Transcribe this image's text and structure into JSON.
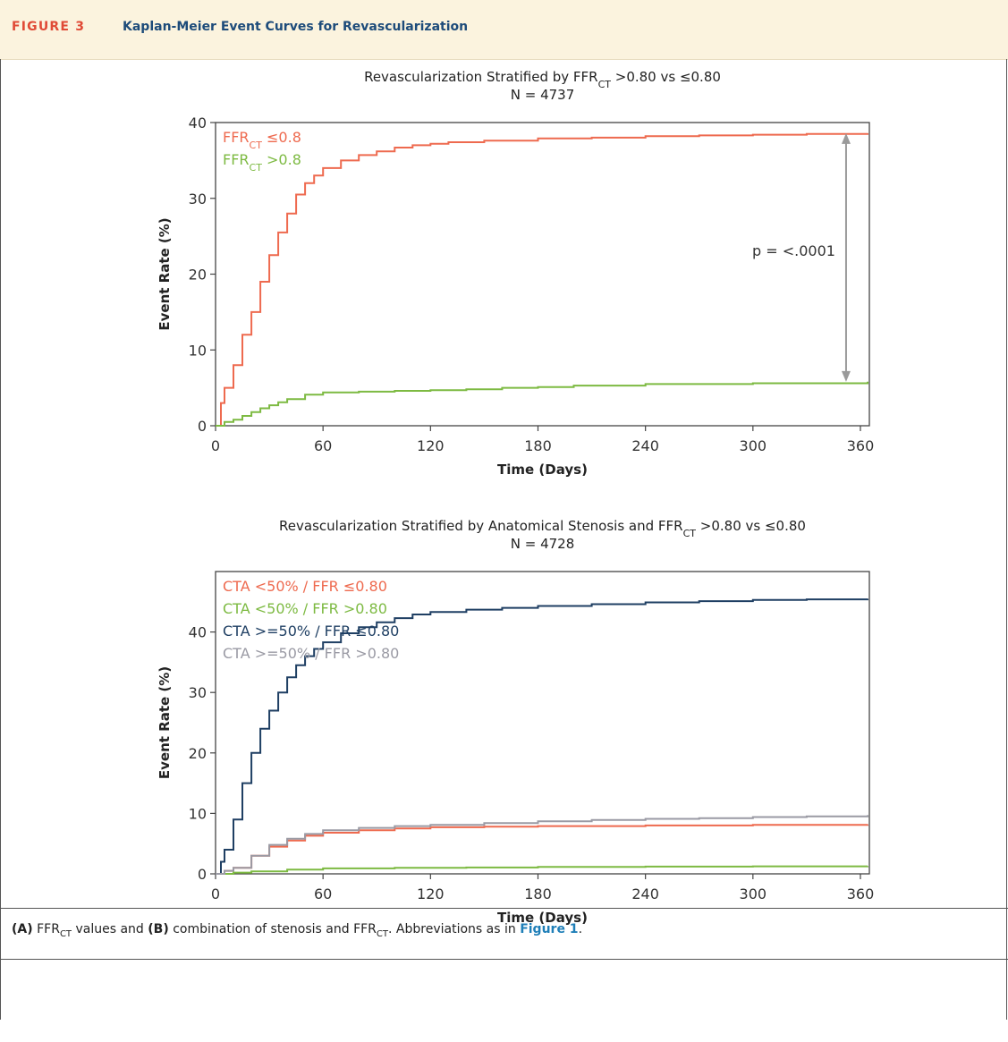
{
  "header": {
    "figure_label": "FIGURE 3",
    "figure_title": "Kaplan-Meier Event Curves for Revascularization"
  },
  "caption": {
    "a_label": "(A)",
    "a_text_pre": "FFR",
    "a_sub": "CT",
    "a_text_post": "values and",
    "b_label": "(B)",
    "b_text_pre": "combination of stenosis and FFR",
    "b_sub": "CT",
    "b_text_post": ". Abbreviations as in",
    "ref_link": "Figure 1",
    "end": "."
  },
  "colors": {
    "red": "#ee6a4f",
    "green": "#7dba42",
    "navy": "#1f3f63",
    "gray": "#9a9aa4",
    "arrow": "#9a9a9a",
    "frame": "#444444"
  },
  "chart_data": [
    {
      "type": "line",
      "title_line1_pre": "Revascularization Stratified by FFR",
      "title_line1_sub": "CT",
      "title_line1_post": " >0.80 vs ≤0.80",
      "title_line2": "N = 4737",
      "xlabel": "Time (Days)",
      "ylabel": "Event Rate (%)",
      "xlim": [
        0,
        365
      ],
      "ylim": [
        0,
        40
      ],
      "xticks": [
        0,
        60,
        120,
        180,
        240,
        300,
        360
      ],
      "yticks": [
        0,
        10,
        20,
        30,
        40
      ],
      "annotation": "p = <.0001",
      "annotation_arrow": {
        "x": 352,
        "y_from": 5.8,
        "y_to": 38.6
      },
      "legend_position": "top-left",
      "series": [
        {
          "name_pre": "FFR",
          "name_sub": "CT",
          "name_post": " ≤0.8",
          "color": "#ee6a4f",
          "x": [
            0,
            3,
            5,
            10,
            15,
            20,
            25,
            30,
            35,
            40,
            45,
            50,
            55,
            60,
            70,
            80,
            90,
            100,
            110,
            120,
            130,
            150,
            180,
            210,
            240,
            270,
            300,
            330,
            364
          ],
          "y": [
            0,
            3,
            5,
            8,
            12,
            15,
            19,
            22.5,
            25.5,
            28,
            30.5,
            32,
            33,
            34,
            35,
            35.7,
            36.2,
            36.7,
            37.0,
            37.2,
            37.4,
            37.6,
            37.9,
            38.0,
            38.2,
            38.3,
            38.4,
            38.5,
            38.6
          ]
        },
        {
          "name_pre": "FFR",
          "name_sub": "CT",
          "name_post": " >0.8",
          "color": "#7dba42",
          "x": [
            0,
            5,
            10,
            15,
            20,
            25,
            30,
            35,
            40,
            50,
            60,
            80,
            100,
            120,
            140,
            160,
            180,
            200,
            240,
            300,
            364
          ],
          "y": [
            0,
            0.5,
            0.8,
            1.3,
            1.8,
            2.3,
            2.7,
            3.1,
            3.5,
            4.1,
            4.4,
            4.5,
            4.6,
            4.7,
            4.8,
            5.0,
            5.1,
            5.3,
            5.5,
            5.6,
            5.8
          ]
        }
      ]
    },
    {
      "type": "line",
      "title_line1_pre": "Revascularization Stratified by Anatomical Stenosis and FFR",
      "title_line1_sub": "CT",
      "title_line1_post": " >0.80 vs ≤0.80",
      "title_line2": "N = 4728",
      "xlabel": "Time (Days)",
      "ylabel": "Event Rate (%)",
      "xlim": [
        0,
        365
      ],
      "ylim": [
        0,
        50
      ],
      "xticks": [
        0,
        60,
        120,
        180,
        240,
        300,
        360
      ],
      "yticks": [
        0,
        10,
        20,
        30,
        40
      ],
      "legend_position": "top-left",
      "series": [
        {
          "name": "CTA <50% / FFR ≤0.80",
          "color": "#ee6a4f",
          "x": [
            0,
            5,
            10,
            20,
            30,
            40,
            50,
            60,
            80,
            100,
            120,
            150,
            180,
            240,
            300,
            364
          ],
          "y": [
            0,
            0.5,
            1.0,
            3.0,
            4.5,
            5.5,
            6.3,
            6.8,
            7.2,
            7.5,
            7.7,
            7.8,
            7.9,
            8.0,
            8.1,
            8.2
          ]
        },
        {
          "name": "CTA <50% / FFR >0.80",
          "color": "#7dba42",
          "x": [
            0,
            10,
            20,
            40,
            60,
            100,
            140,
            180,
            240,
            300,
            364
          ],
          "y": [
            0,
            0.2,
            0.4,
            0.7,
            0.9,
            1.0,
            1.05,
            1.15,
            1.2,
            1.25,
            1.3
          ]
        },
        {
          "name": "CTA >=50% / FFR ≤0.80",
          "color": "#1f3f63",
          "x": [
            0,
            3,
            5,
            10,
            15,
            20,
            25,
            30,
            35,
            40,
            45,
            50,
            55,
            60,
            70,
            80,
            90,
            100,
            110,
            120,
            140,
            160,
            180,
            210,
            240,
            270,
            300,
            330,
            364
          ],
          "y": [
            0,
            2,
            4,
            9,
            15,
            20,
            24,
            27,
            30,
            32.5,
            34.5,
            36,
            37.2,
            38.3,
            39.8,
            40.8,
            41.6,
            42.3,
            42.9,
            43.3,
            43.7,
            44.0,
            44.3,
            44.6,
            44.9,
            45.1,
            45.3,
            45.4,
            45.5
          ]
        },
        {
          "name": "CTA >=50% / FFR >0.80",
          "color": "#9a9aa4",
          "x": [
            0,
            5,
            10,
            20,
            30,
            40,
            50,
            60,
            80,
            100,
            120,
            150,
            180,
            210,
            240,
            270,
            300,
            330,
            364
          ],
          "y": [
            0,
            0.5,
            1.0,
            3.0,
            4.8,
            5.8,
            6.6,
            7.2,
            7.6,
            7.9,
            8.1,
            8.4,
            8.7,
            8.9,
            9.1,
            9.2,
            9.4,
            9.5,
            9.7
          ]
        }
      ]
    }
  ]
}
